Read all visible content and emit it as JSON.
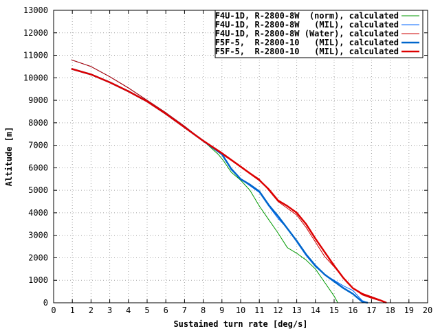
{
  "chart_data": {
    "type": "line",
    "xlabel": "Sustained turn rate [deg/s]",
    "ylabel": "Altitude [m]",
    "xlim": [
      0,
      20
    ],
    "ylim": [
      0,
      13000
    ],
    "x_ticks": [
      0,
      1,
      2,
      3,
      4,
      5,
      6,
      7,
      8,
      9,
      10,
      11,
      12,
      13,
      14,
      15,
      16,
      17,
      18,
      19,
      20
    ],
    "y_ticks": [
      0,
      1000,
      2000,
      3000,
      4000,
      5000,
      6000,
      7000,
      8000,
      9000,
      10000,
      11000,
      12000,
      13000
    ],
    "grid": true,
    "legend_position": "top-right",
    "series": [
      {
        "name": "F4U-1D, R-2800-8W  (norm), calculated",
        "color": "#009900",
        "points": [
          [
            0.95,
            10800
          ],
          [
            2,
            10500
          ],
          [
            3,
            10050
          ],
          [
            4,
            9550
          ],
          [
            5,
            9000
          ],
          [
            6,
            8450
          ],
          [
            7,
            7850
          ],
          [
            8,
            7200
          ],
          [
            8.8,
            6600
          ],
          [
            9.1,
            6300
          ],
          [
            9.5,
            5800
          ],
          [
            10,
            5450
          ],
          [
            10.5,
            5000
          ],
          [
            11,
            4300
          ],
          [
            11.5,
            3700
          ],
          [
            12,
            3100
          ],
          [
            12.5,
            2450
          ],
          [
            13,
            2200
          ],
          [
            13.5,
            1900
          ],
          [
            14,
            1500
          ],
          [
            14.5,
            900
          ],
          [
            15,
            300
          ],
          [
            15.2,
            0
          ]
        ]
      },
      {
        "name": "F4U-1D, R-2800-8W   (MIL), calculated",
        "color": "#0066ff",
        "points": [
          [
            0.95,
            10800
          ],
          [
            2,
            10500
          ],
          [
            3,
            10050
          ],
          [
            4,
            9550
          ],
          [
            5,
            9000
          ],
          [
            6,
            8450
          ],
          [
            7,
            7850
          ],
          [
            8,
            7200
          ],
          [
            9,
            6600
          ],
          [
            9.5,
            5900
          ],
          [
            10,
            5500
          ],
          [
            10.5,
            5200
          ],
          [
            11,
            4900
          ],
          [
            11.5,
            4300
          ],
          [
            12,
            3750
          ],
          [
            12.5,
            3300
          ],
          [
            13,
            2700
          ],
          [
            13.5,
            2100
          ],
          [
            14,
            1600
          ],
          [
            14.5,
            1250
          ],
          [
            15,
            1000
          ],
          [
            15.5,
            750
          ],
          [
            16,
            550
          ],
          [
            16.5,
            100
          ],
          [
            16.8,
            0
          ]
        ]
      },
      {
        "name": "F4U-1D, R-2800-8W (Water), calculated",
        "color": "#cc0000",
        "points": [
          [
            0.95,
            10800
          ],
          [
            2,
            10500
          ],
          [
            3,
            10050
          ],
          [
            4,
            9550
          ],
          [
            5,
            9000
          ],
          [
            6,
            8450
          ],
          [
            7,
            7850
          ],
          [
            8,
            7200
          ],
          [
            9,
            6600
          ],
          [
            10,
            6050
          ],
          [
            11,
            5500
          ],
          [
            11.5,
            5000
          ],
          [
            12,
            4500
          ],
          [
            12.5,
            4200
          ],
          [
            13,
            3900
          ],
          [
            13.5,
            3350
          ],
          [
            14,
            2700
          ],
          [
            14.5,
            2050
          ],
          [
            15,
            1600
          ],
          [
            15.5,
            1100
          ],
          [
            16,
            650
          ],
          [
            16.5,
            350
          ],
          [
            17,
            200
          ],
          [
            17.5,
            80
          ],
          [
            17.8,
            0
          ]
        ]
      },
      {
        "name": "F5F-5,  R-2800-10   (MIL), calculated",
        "color": "#0066cc",
        "thick": true,
        "points": [
          [
            0.95,
            10400
          ],
          [
            2,
            10150
          ],
          [
            3,
            9800
          ],
          [
            4,
            9400
          ],
          [
            5,
            8950
          ],
          [
            6,
            8400
          ],
          [
            7,
            7800
          ],
          [
            8,
            7200
          ],
          [
            9,
            6600
          ],
          [
            9.5,
            5950
          ],
          [
            10,
            5500
          ],
          [
            10.5,
            5250
          ],
          [
            11,
            4950
          ],
          [
            11.5,
            4350
          ],
          [
            12,
            3850
          ],
          [
            12.5,
            3300
          ],
          [
            13,
            2750
          ],
          [
            13.5,
            2150
          ],
          [
            14,
            1650
          ],
          [
            14.5,
            1250
          ],
          [
            15,
            950
          ],
          [
            15.5,
            650
          ],
          [
            16,
            400
          ],
          [
            16.5,
            50
          ],
          [
            16.8,
            0
          ]
        ]
      },
      {
        "name": "F5F-5,  R-2800-10   (MIL), calculated",
        "color": "#dd0000",
        "thick": true,
        "points": [
          [
            0.95,
            10400
          ],
          [
            2,
            10150
          ],
          [
            3,
            9800
          ],
          [
            4,
            9400
          ],
          [
            5,
            8950
          ],
          [
            6,
            8400
          ],
          [
            7,
            7800
          ],
          [
            8,
            7200
          ],
          [
            9,
            6650
          ],
          [
            10,
            6050
          ],
          [
            11,
            5450
          ],
          [
            11.5,
            5050
          ],
          [
            12,
            4550
          ],
          [
            12.5,
            4300
          ],
          [
            13,
            4000
          ],
          [
            13.5,
            3500
          ],
          [
            14,
            2850
          ],
          [
            14.5,
            2250
          ],
          [
            15,
            1650
          ],
          [
            15.5,
            1100
          ],
          [
            16,
            650
          ],
          [
            16.5,
            400
          ],
          [
            17,
            250
          ],
          [
            17.5,
            100
          ],
          [
            17.8,
            0
          ]
        ]
      }
    ]
  }
}
